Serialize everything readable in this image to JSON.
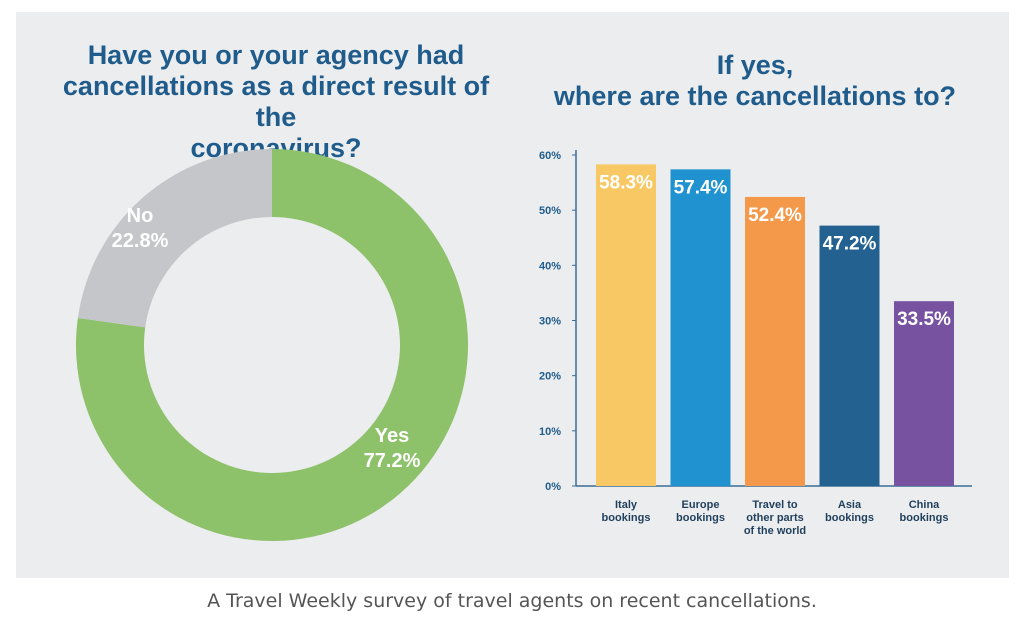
{
  "caption": "A Travel Weekly survey of travel agents on recent cancellations.",
  "chart_data": [
    {
      "type": "pie",
      "title": "Have you or your agency had\ncancellations as a direct result of the\ncoronavirus?",
      "slices": [
        {
          "label": "Yes",
          "value": 77.2,
          "display": "77.2%",
          "color": "#8dc16a"
        },
        {
          "label": "No",
          "value": 22.8,
          "display": "22.8%",
          "color": "#c4c6c9"
        }
      ]
    },
    {
      "type": "bar",
      "title": "If yes,\nwhere are the cancellations to?",
      "categories": [
        "Italy\nbookings",
        "Europe\nbookings",
        "Travel to\nother parts\nof the world",
        "Asia\nbookings",
        "China\nbookings"
      ],
      "values": [
        58.3,
        57.4,
        52.4,
        47.2,
        33.5
      ],
      "value_labels": [
        "58.3%",
        "57.4%",
        "52.4%",
        "47.2%",
        "33.5%"
      ],
      "colors": [
        "#f7c863",
        "#1f92cf",
        "#f4984a",
        "#226190",
        "#7652a1"
      ],
      "ylim": [
        0,
        60
      ],
      "yticks": [
        "0%",
        "10%",
        "20%",
        "30%",
        "40%",
        "50%",
        "60%"
      ],
      "xlabel": "",
      "ylabel": ""
    }
  ]
}
